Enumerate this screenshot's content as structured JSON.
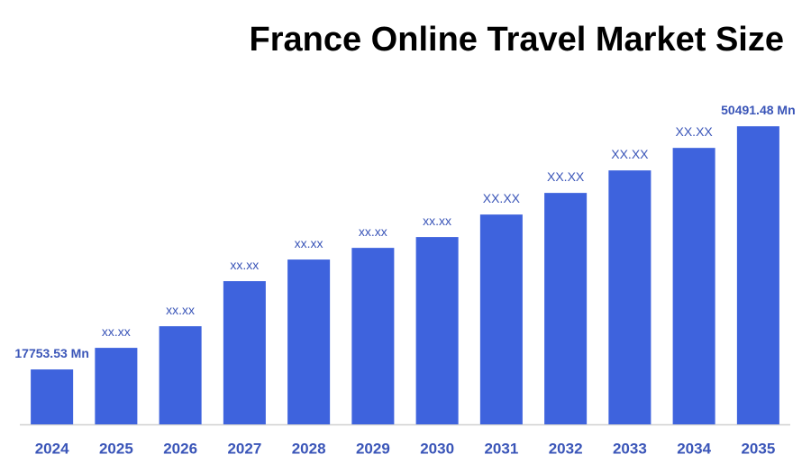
{
  "chart_data": {
    "type": "bar",
    "title": "France Online Travel Market Size",
    "categories": [
      "2024",
      "2025",
      "2026",
      "2027",
      "2028",
      "2029",
      "2030",
      "2031",
      "2032",
      "2033",
      "2034",
      "2035"
    ],
    "values": [
      17753.53,
      20660,
      23570,
      29640,
      32550,
      34120,
      35580,
      38610,
      41520,
      44550,
      47580,
      50491.48
    ],
    "value_labels": [
      "17753.53 Mn",
      "xx.xx",
      "xx.xx",
      "xx.xx",
      "xx.xx",
      "xx.xx",
      "xx.xx",
      "XX.XX",
      "XX.XX",
      "XX.XX",
      "XX.XX",
      "50491.48 Mn"
    ],
    "color": "#3e63dd",
    "ylim": [
      10360,
      55000
    ]
  }
}
